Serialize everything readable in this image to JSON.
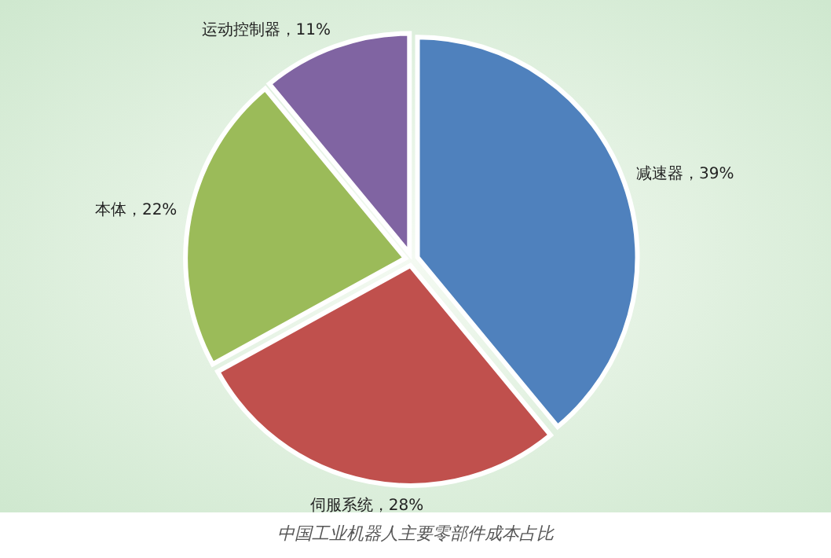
{
  "chart_data": {
    "type": "pie",
    "categories": [
      "减速器",
      "伺服系统",
      "本体",
      "运动控制器"
    ],
    "values": [
      39,
      28,
      22,
      11
    ],
    "colors": [
      "#4f81bd",
      "#c0504d",
      "#9bbb59",
      "#8064a2"
    ],
    "value_labels": [
      "，39%",
      "，28%",
      "，22%",
      "，11%"
    ],
    "annotations": [
      "中国工业机器人主要零部件成本占比"
    ]
  }
}
